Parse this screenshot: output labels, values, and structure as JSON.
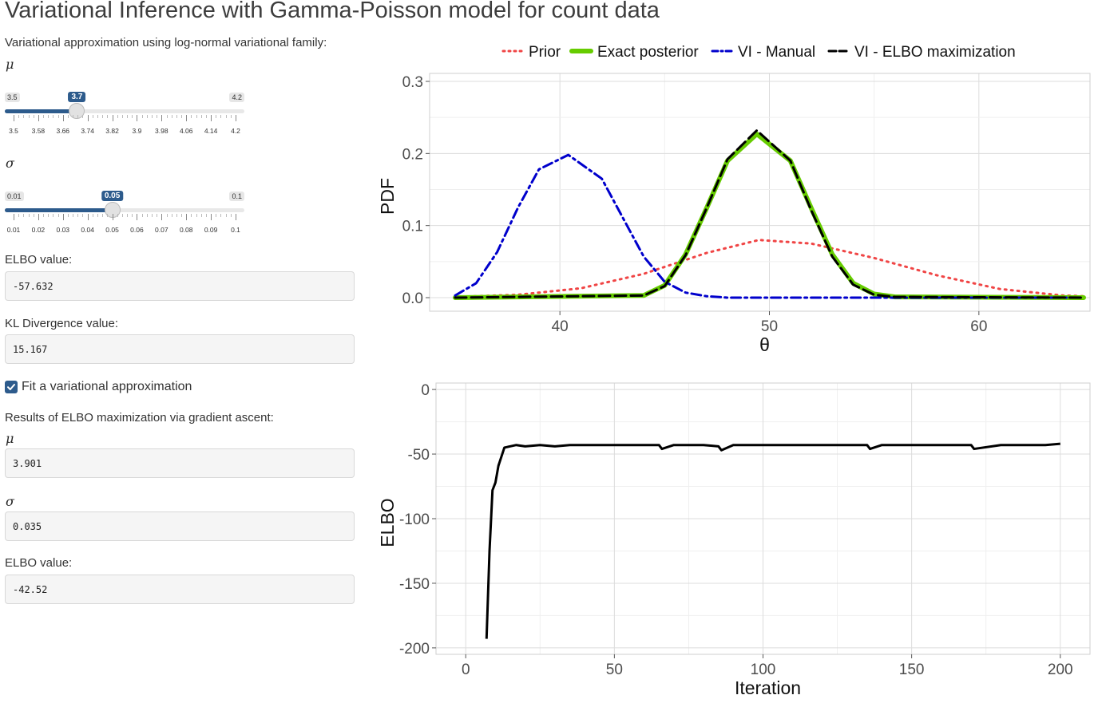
{
  "page": {
    "title": "Variational Inference with Gamma-Poisson model for count data"
  },
  "sidebar": {
    "approx_label": "Variational approximation using log-normal variational family:",
    "mu_symbol": "μ",
    "sigma_symbol": "σ",
    "mu_slider": {
      "min_label": "3.5",
      "max_label": "4.2",
      "value_label": "3.7",
      "min": 3.5,
      "max": 4.2,
      "value": 3.7,
      "ticks": [
        "3.5",
        "3.58",
        "3.66",
        "3.74",
        "3.82",
        "3.9",
        "3.98",
        "4.06",
        "4.14",
        "4.2"
      ]
    },
    "sigma_slider": {
      "min_label": "0.01",
      "max_label": "0.1",
      "value_label": "0.05",
      "min": 0.01,
      "max": 0.1,
      "value": 0.05,
      "ticks": [
        "0.01",
        "0.02",
        "0.03",
        "0.04",
        "0.05",
        "0.06",
        "0.07",
        "0.08",
        "0.09",
        "0.1"
      ]
    },
    "elbo_label": "ELBO value:",
    "elbo_value": "-57.632",
    "kl_label": "KL Divergence value:",
    "kl_value": "15.167",
    "fit_checkbox_label": "Fit a variational approximation",
    "fit_checked": true,
    "results_label": "Results of ELBO maximization via gradient ascent:",
    "result_mu_value": "3.901",
    "result_sigma_value": "0.035",
    "result_elbo_label": "ELBO value:",
    "result_elbo_value": "-42.52"
  },
  "colors": {
    "accent": "#2d5b8c",
    "prior": "#f04545",
    "exact_posterior": "#66cc00",
    "vi_manual": "#0000cc",
    "vi_elbo": "#000000"
  },
  "chart_data": [
    {
      "type": "line",
      "xlabel": "θ",
      "ylabel": "PDF",
      "xlim": [
        35,
        65
      ],
      "ylim": [
        0,
        0.3
      ],
      "xticks": [
        "40",
        "50",
        "60"
      ],
      "yticks": [
        "0.0",
        "0.1",
        "0.2",
        "0.3"
      ],
      "grid": true,
      "legend_position": "top",
      "series": [
        {
          "name": "Prior",
          "style": "dotted",
          "color": "#f04545",
          "x": [
            35,
            38,
            41,
            44,
            47,
            49.5,
            52,
            55,
            58,
            61,
            64,
            65
          ],
          "y": [
            0.001,
            0.004,
            0.013,
            0.033,
            0.062,
            0.08,
            0.075,
            0.055,
            0.031,
            0.012,
            0.003,
            0.002
          ]
        },
        {
          "name": "Exact posterior",
          "style": "solid",
          "color": "#66cc00",
          "x": [
            35,
            44,
            45,
            46,
            47,
            48,
            49.4,
            51,
            52,
            53,
            54,
            55,
            56,
            65
          ],
          "y": [
            0,
            0.003,
            0.017,
            0.06,
            0.124,
            0.19,
            0.227,
            0.19,
            0.124,
            0.06,
            0.02,
            0.005,
            0.001,
            0
          ]
        },
        {
          "name": "VI - Manual",
          "style": "dotdash",
          "color": "#0000cc",
          "x": [
            35,
            36,
            37,
            38,
            39,
            40.4,
            42,
            43,
            44,
            45,
            46,
            47,
            48,
            65
          ],
          "y": [
            0.003,
            0.02,
            0.063,
            0.125,
            0.178,
            0.198,
            0.165,
            0.111,
            0.057,
            0.022,
            0.007,
            0.002,
            0,
            0
          ]
        },
        {
          "name": "VI - ELBO maximization",
          "style": "dashed",
          "color": "#000000",
          "x": [
            35,
            44,
            45,
            46,
            47,
            48,
            49.4,
            51,
            52,
            53,
            54,
            55,
            56,
            65
          ],
          "y": [
            0,
            0.003,
            0.016,
            0.059,
            0.124,
            0.192,
            0.232,
            0.19,
            0.121,
            0.057,
            0.018,
            0.004,
            0.001,
            0
          ]
        }
      ]
    },
    {
      "type": "line",
      "xlabel": "Iteration",
      "ylabel": "ELBO",
      "xlim": [
        -10,
        210
      ],
      "ylim": [
        -205,
        5
      ],
      "xticks": [
        "0",
        "50",
        "100",
        "150",
        "200"
      ],
      "yticks": [
        "0",
        "-50",
        "-100",
        "-150",
        "-200"
      ],
      "grid": true,
      "series": [
        {
          "name": "",
          "color": "#000000",
          "x": [
            7,
            8,
            9,
            10,
            11,
            12,
            13,
            15,
            17,
            20,
            25,
            30,
            35,
            40,
            50,
            60,
            65,
            66,
            70,
            75,
            80,
            85,
            86,
            90,
            95,
            100,
            110,
            120,
            130,
            135,
            136,
            140,
            150,
            160,
            170,
            171,
            180,
            190,
            195,
            200
          ],
          "y": [
            -193,
            -125,
            -78,
            -72,
            -59,
            -52,
            -45,
            -44,
            -43,
            -44,
            -43,
            -44,
            -43,
            -43,
            -43,
            -43,
            -43,
            -46,
            -43,
            -43,
            -43,
            -44,
            -47,
            -43,
            -43,
            -43,
            -43,
            -43,
            -43,
            -43,
            -46,
            -43,
            -43,
            -43,
            -43,
            -46,
            -43,
            -43,
            -43,
            -42
          ]
        }
      ]
    }
  ]
}
